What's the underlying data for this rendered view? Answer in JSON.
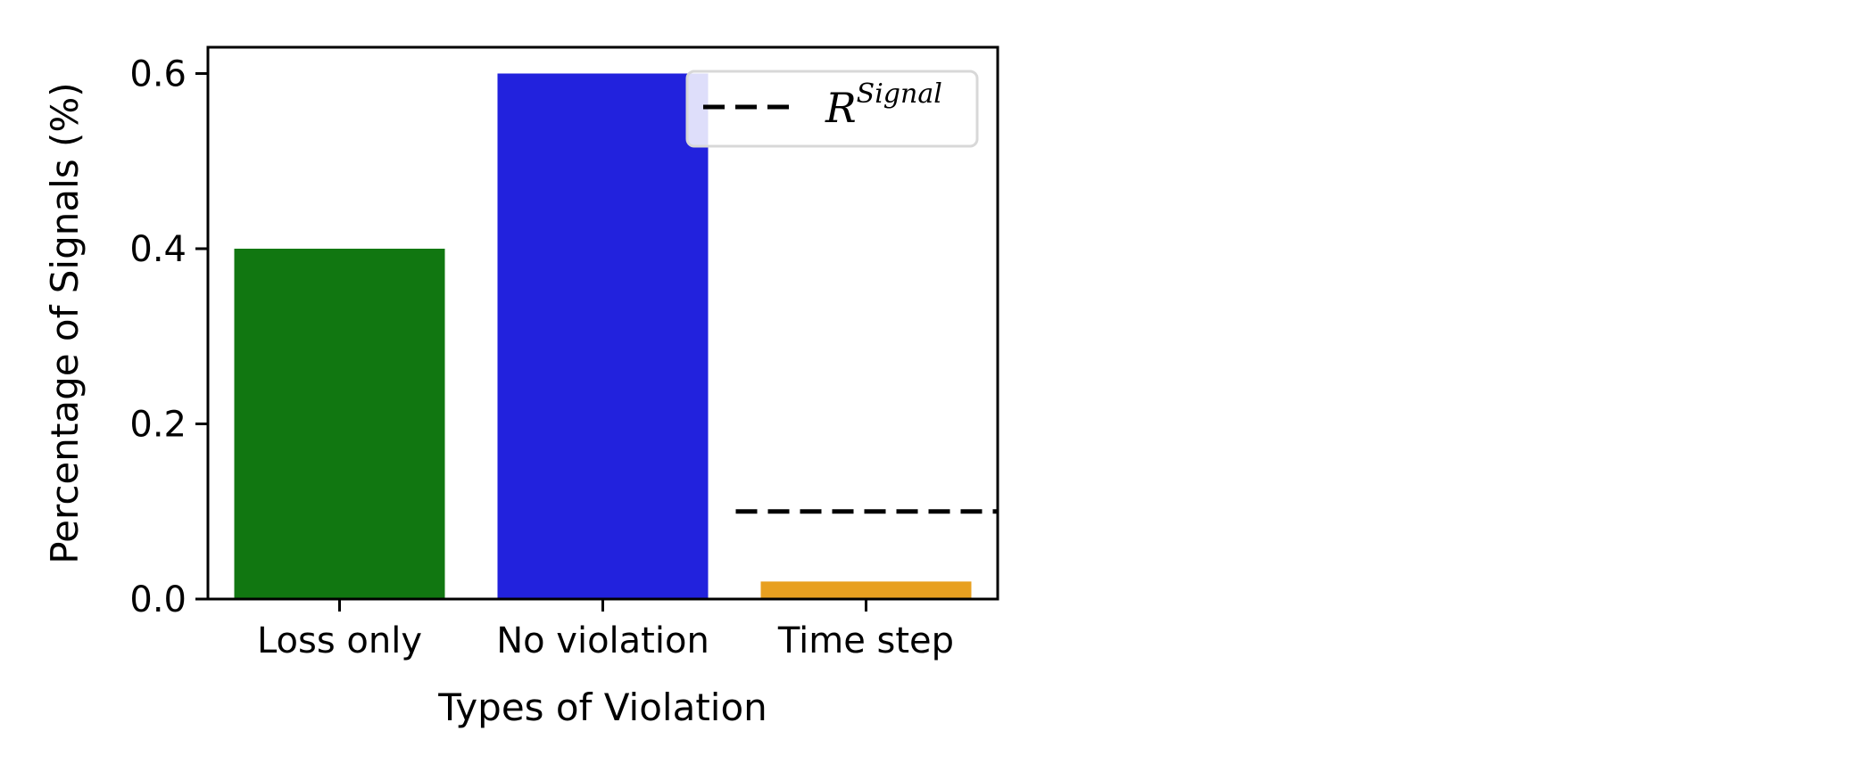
{
  "chart_data": {
    "type": "bar",
    "categories": [
      "Loss only",
      "No violation",
      "Time step"
    ],
    "values": [
      0.4,
      0.6,
      0.02
    ],
    "colors": [
      "#117711",
      "#2222dd",
      "#e8a020"
    ],
    "xlabel": "Types of Violation",
    "ylabel": "Percentage of Signals (%)",
    "ylim": [
      0,
      0.63
    ],
    "yticks": [
      0.0,
      0.2,
      0.4,
      0.6
    ],
    "ytick_labels": [
      "0.0",
      "0.2",
      "0.4",
      "0.6"
    ],
    "reference_line": {
      "value": 0.1,
      "category": "Time step",
      "style": "dashed",
      "color": "#000000"
    },
    "legend": {
      "position": "top-right",
      "entries": [
        {
          "symbol": "R",
          "superscript": "Signal",
          "style": "dashed-line"
        }
      ]
    },
    "grid": false
  }
}
